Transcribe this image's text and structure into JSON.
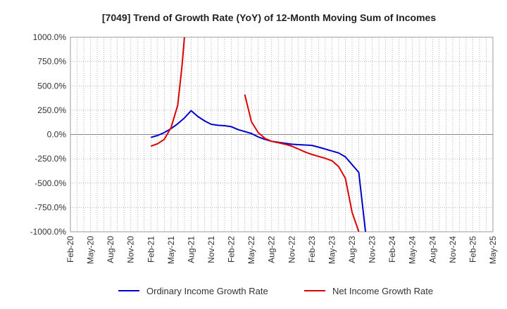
{
  "chart_data": {
    "type": "line",
    "title": "[7049]  Trend of Growth Rate (YoY) of 12-Month Moving Sum of Incomes",
    "xlabel": "",
    "ylabel": "",
    "x_range": [
      "2020-02",
      "2025-05"
    ],
    "ylim": [
      -1000,
      1000
    ],
    "y_ticks": [
      1000,
      750,
      500,
      250,
      0,
      -250,
      -500,
      -750,
      -1000
    ],
    "y_tick_labels": [
      "1000.0%",
      "750.0%",
      "500.0%",
      "250.0%",
      "0.0%",
      "-250.0%",
      "-500.0%",
      "-750.0%",
      "-1000.0%"
    ],
    "x_ticks": [
      "2020-02",
      "2020-05",
      "2020-08",
      "2020-11",
      "2021-02",
      "2021-05",
      "2021-08",
      "2021-11",
      "2022-02",
      "2022-05",
      "2022-08",
      "2022-11",
      "2023-02",
      "2023-05",
      "2023-08",
      "2023-11",
      "2024-02",
      "2024-05",
      "2024-08",
      "2024-11",
      "2025-02",
      "2025-05"
    ],
    "x_tick_labels": [
      "Feb-20",
      "May-20",
      "Aug-20",
      "Nov-20",
      "Feb-21",
      "May-21",
      "Aug-21",
      "Nov-21",
      "Feb-22",
      "May-22",
      "Aug-22",
      "Nov-22",
      "Feb-23",
      "May-23",
      "Aug-23",
      "Nov-23",
      "Feb-24",
      "May-24",
      "Aug-24",
      "Nov-24",
      "Feb-25",
      "May-25"
    ],
    "grid": true,
    "legend_position": "bottom",
    "series": [
      {
        "name": "Ordinary Income Growth Rate",
        "color": "#0000cc",
        "points": [
          [
            "2021-02",
            -30
          ],
          [
            "2021-03",
            -10
          ],
          [
            "2021-04",
            20
          ],
          [
            "2021-05",
            60
          ],
          [
            "2021-06",
            110
          ],
          [
            "2021-07",
            170
          ],
          [
            "2021-08",
            245
          ],
          [
            "2021-09",
            185
          ],
          [
            "2021-10",
            140
          ],
          [
            "2021-11",
            105
          ],
          [
            "2021-12",
            95
          ],
          [
            "2022-01",
            90
          ],
          [
            "2022-02",
            80
          ],
          [
            "2022-03",
            50
          ],
          [
            "2022-04",
            30
          ],
          [
            "2022-05",
            10
          ],
          [
            "2022-06",
            -25
          ],
          [
            "2022-07",
            -50
          ],
          [
            "2022-08",
            -70
          ],
          [
            "2022-09",
            -80
          ],
          [
            "2022-10",
            -90
          ],
          [
            "2022-11",
            -100
          ],
          [
            "2022-12",
            -105
          ],
          [
            "2023-01",
            -108
          ],
          [
            "2023-02",
            -112
          ],
          [
            "2023-03",
            -130
          ],
          [
            "2023-04",
            -150
          ],
          [
            "2023-05",
            -170
          ],
          [
            "2023-06",
            -190
          ],
          [
            "2023-07",
            -230
          ],
          [
            "2023-08",
            -310
          ],
          [
            "2023-09",
            -390
          ],
          [
            "2023-10",
            -1000
          ]
        ]
      },
      {
        "name": "Net Income Growth Rate",
        "color": "#dd0000",
        "segments": [
          [
            [
              "2021-02",
              -120
            ],
            [
              "2021-03",
              -95
            ],
            [
              "2021-04",
              -50
            ],
            [
              "2021-05",
              70
            ],
            [
              "2021-06",
              300
            ],
            [
              "2021-06-20",
              700
            ],
            [
              "2021-07",
              1000
            ]
          ],
          [
            [
              "2022-04",
              410
            ],
            [
              "2022-05",
              130
            ],
            [
              "2022-06",
              20
            ],
            [
              "2022-07",
              -40
            ],
            [
              "2022-08",
              -70
            ],
            [
              "2022-09",
              -85
            ],
            [
              "2022-10",
              -100
            ],
            [
              "2022-11",
              -120
            ],
            [
              "2022-12",
              -150
            ],
            [
              "2023-01",
              -180
            ],
            [
              "2023-02",
              -205
            ],
            [
              "2023-03",
              -225
            ],
            [
              "2023-04",
              -245
            ],
            [
              "2023-05",
              -270
            ],
            [
              "2023-06",
              -330
            ],
            [
              "2023-07",
              -450
            ],
            [
              "2023-08",
              -800
            ],
            [
              "2023-09",
              -1000
            ]
          ]
        ]
      }
    ]
  }
}
